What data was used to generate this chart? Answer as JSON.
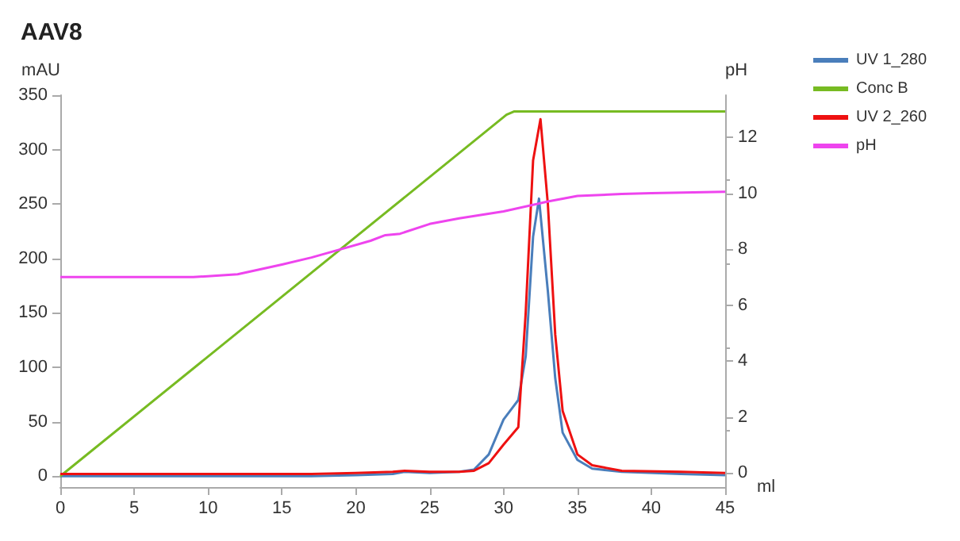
{
  "chart_data": {
    "type": "line",
    "title": "AAV8",
    "xlabel": "ml",
    "ylabel": "mAU",
    "y2label": "pH",
    "xlim": [
      0,
      45
    ],
    "xticks": [
      0,
      5,
      10,
      15,
      20,
      25,
      30,
      35,
      40,
      45
    ],
    "ylim": [
      -10,
      350
    ],
    "yticks": [
      0,
      50,
      100,
      150,
      200,
      250,
      300,
      350
    ],
    "y2lim": [
      -0.5,
      13.5
    ],
    "y2ticks": [
      0,
      2,
      4,
      6,
      8,
      10,
      12
    ],
    "grid": false,
    "legend": "top right",
    "marker": "none",
    "line_style": "solid",
    "series": [
      {
        "name": "UV 1_280",
        "color": "#4a7ebb",
        "x": [
          0,
          10,
          17,
          20,
          22.5,
          23.3,
          25,
          27,
          28,
          29,
          30,
          31,
          31.5,
          32,
          32.4,
          33,
          33.5,
          34,
          35,
          36,
          38,
          42,
          45
        ],
        "values": [
          0,
          0,
          0,
          1,
          2,
          4,
          3,
          4,
          6,
          20,
          52,
          70,
          110,
          220,
          255,
          170,
          90,
          40,
          15,
          7,
          4,
          2,
          1
        ]
      },
      {
        "name": "Conc B",
        "color": "#77bb22",
        "x": [
          0,
          30.2,
          30.7,
          45
        ],
        "values": [
          0,
          332,
          335,
          335
        ]
      },
      {
        "name": "UV 2_260",
        "color": "#ee1111",
        "x": [
          0,
          10,
          17,
          20,
          22.5,
          23.3,
          25,
          27,
          28,
          29,
          30,
          31,
          31.5,
          32,
          32.5,
          33,
          33.5,
          34,
          35,
          36,
          38,
          42,
          45
        ],
        "values": [
          2,
          2,
          2,
          3,
          4,
          5,
          4,
          4,
          5,
          12,
          29,
          45,
          150,
          290,
          328,
          250,
          130,
          60,
          20,
          10,
          5,
          4,
          3
        ]
      },
      {
        "name": "pH",
        "color": "#ee44ee",
        "axis": "y2",
        "x": [
          0,
          9,
          12,
          15,
          17,
          19,
          21,
          22,
          23,
          25,
          27,
          30,
          33,
          35,
          38,
          40,
          45
        ],
        "values": [
          7,
          7,
          7.1,
          7.45,
          7.7,
          8,
          8.3,
          8.5,
          8.55,
          8.9,
          9.1,
          9.35,
          9.7,
          9.9,
          9.97,
          10,
          10.05
        ]
      }
    ]
  }
}
